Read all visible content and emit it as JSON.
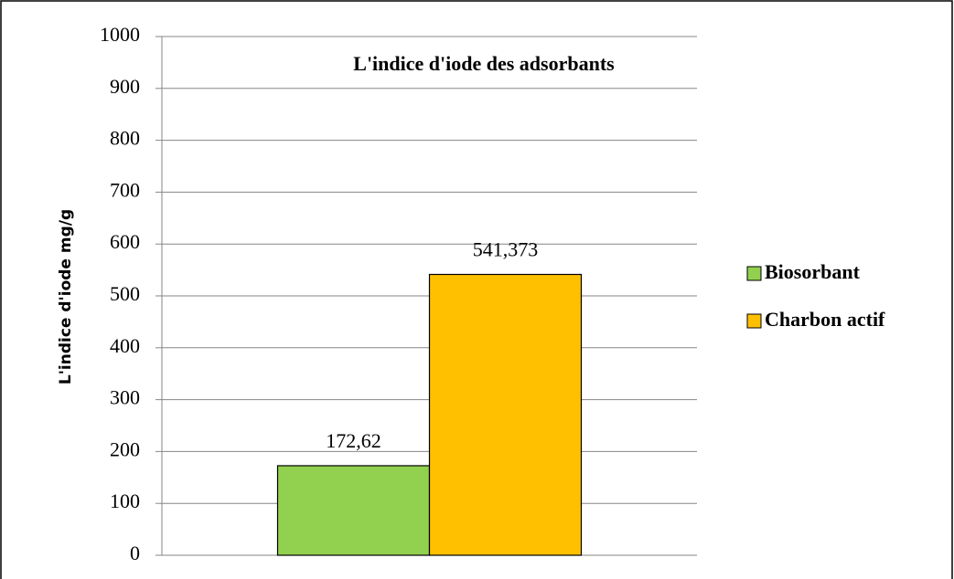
{
  "chart_data": {
    "type": "bar",
    "title": "L'indice d'iode  des adsorbants",
    "y_label": "L'indice d'iode mg/g",
    "categories": [
      null
    ],
    "series": [
      {
        "name": "Biosorbant",
        "color": "#92d050",
        "values": [
          172.62
        ],
        "value_labels": [
          "172,62"
        ]
      },
      {
        "name": "Charbon actif",
        "color": "#ffc000",
        "values": [
          541.373
        ],
        "value_labels": [
          "541,373"
        ]
      }
    ],
    "ylim": [
      0,
      1000
    ],
    "yticks": [
      0,
      100,
      200,
      300,
      400,
      500,
      600,
      700,
      800,
      900,
      1000
    ],
    "grid": true,
    "legend": "right"
  }
}
